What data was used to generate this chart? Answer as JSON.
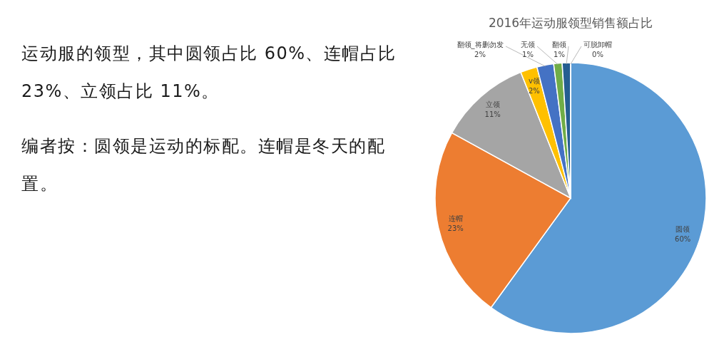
{
  "chart_data": {
    "type": "pie",
    "title": "2016年运动服领型销售额占比",
    "categories": [
      "圆领",
      "连帽",
      "立领",
      "v领",
      "翻领_将删勿发",
      "无领",
      "翻领",
      "可脱卸帽"
    ],
    "values": [
      60,
      23,
      11,
      2,
      2,
      1,
      1,
      0
    ],
    "colors": [
      "#5b9bd5",
      "#ed7d31",
      "#a5a5a5",
      "#ffc000",
      "#4472c4",
      "#70ad47",
      "#255e91",
      "#9e480e"
    ],
    "value_labels": [
      "60%",
      "23%",
      "11%",
      "2%",
      "2%",
      "1%",
      "1%",
      "0%"
    ],
    "annotations": [
      "运动服的领型，其中圆领占比 60%、连帽占比 23%、立领占比 11%。",
      "编者按：圆领是运动的标配。连帽是冬天的配置。"
    ]
  }
}
